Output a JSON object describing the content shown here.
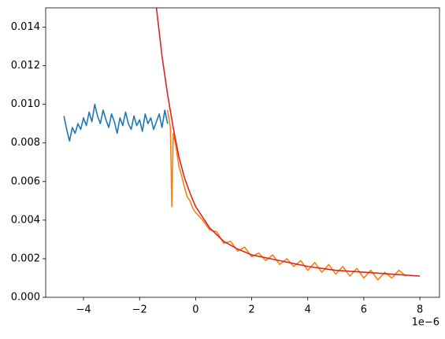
{
  "chart_data": {
    "type": "line",
    "x_offset_label": "1e−6",
    "xlim": [
      -5.35,
      8.7
    ],
    "ylim": [
      0,
      0.015
    ],
    "xticks": [
      {
        "value": -4,
        "label": "−4"
      },
      {
        "value": -2,
        "label": "−2"
      },
      0,
      2,
      4,
      6,
      8
    ],
    "yticks": [
      {
        "value": 0,
        "label": "0.000"
      },
      {
        "value": 0.002,
        "label": "0.002"
      },
      {
        "value": 0.004,
        "label": "0.004"
      },
      {
        "value": 0.006,
        "label": "0.006"
      },
      {
        "value": 0.008,
        "label": "0.008"
      },
      {
        "value": 0.01,
        "label": "0.010"
      },
      {
        "value": 0.012,
        "label": "0.012"
      },
      {
        "value": 0.014,
        "label": "0.014"
      }
    ],
    "series": [
      {
        "color": "#1f77b4",
        "x": [
          -4.7,
          -4.6,
          -4.5,
          -4.4,
          -4.3,
          -4.2,
          -4.1,
          -4.0,
          -3.9,
          -3.8,
          -3.7,
          -3.6,
          -3.5,
          -3.4,
          -3.3,
          -3.2,
          -3.1,
          -3.0,
          -2.9,
          -2.8,
          -2.7,
          -2.6,
          -2.5,
          -2.4,
          -2.3,
          -2.2,
          -2.1,
          -2.0,
          -1.9,
          -1.8,
          -1.7,
          -1.6,
          -1.5,
          -1.4,
          -1.3,
          -1.2,
          -1.1,
          -1.0
        ],
        "values": [
          0.0094,
          0.0087,
          0.0081,
          0.0088,
          0.0085,
          0.009,
          0.0087,
          0.0093,
          0.0089,
          0.0096,
          0.0091,
          0.01,
          0.0094,
          0.009,
          0.0097,
          0.0092,
          0.0088,
          0.0095,
          0.0091,
          0.0085,
          0.0093,
          0.0089,
          0.0096,
          0.009,
          0.0087,
          0.0094,
          0.0089,
          0.0092,
          0.0086,
          0.0095,
          0.009,
          0.0093,
          0.0087,
          0.0091,
          0.0095,
          0.0088,
          0.0097,
          0.009
        ]
      },
      {
        "color": "#ff7f0e",
        "x": [
          -1.0,
          -0.9,
          -0.85,
          -0.8,
          -0.7,
          -0.6,
          -0.5,
          -0.4,
          -0.3,
          -0.2,
          -0.1,
          0,
          0.25,
          0.5,
          0.75,
          1.0,
          1.25,
          1.5,
          1.75,
          2.0,
          2.25,
          2.5,
          2.75,
          3.0,
          3.25,
          3.5,
          3.75,
          4.0,
          4.25,
          4.5,
          4.75,
          5.0,
          5.25,
          5.5,
          5.75,
          6.0,
          6.25,
          6.5,
          6.75,
          7.0,
          7.25,
          7.5
        ],
        "values": [
          0.0097,
          0.0088,
          0.0047,
          0.0085,
          0.0078,
          0.0068,
          0.0063,
          0.0057,
          0.0052,
          0.005,
          0.0046,
          0.0044,
          0.004,
          0.0035,
          0.0034,
          0.0028,
          0.0029,
          0.0024,
          0.0026,
          0.0021,
          0.0023,
          0.0019,
          0.0022,
          0.0017,
          0.002,
          0.0016,
          0.0019,
          0.0014,
          0.0018,
          0.0013,
          0.0017,
          0.0012,
          0.0016,
          0.0011,
          0.0015,
          0.001,
          0.0014,
          0.0009,
          0.0013,
          0.001,
          0.0014,
          0.0011
        ]
      },
      {
        "color": "#d62728",
        "x": [
          -1.4,
          -1.2,
          -1.0,
          -0.8,
          -0.6,
          -0.4,
          -0.2,
          0,
          0.5,
          1,
          1.5,
          2,
          3,
          4,
          5,
          6,
          7,
          8
        ],
        "values": [
          0.015,
          0.0125,
          0.0105,
          0.0088,
          0.0073,
          0.0062,
          0.0054,
          0.0047,
          0.0036,
          0.0029,
          0.0025,
          0.0022,
          0.0019,
          0.0016,
          0.0014,
          0.0013,
          0.0012,
          0.0011
        ]
      }
    ]
  }
}
